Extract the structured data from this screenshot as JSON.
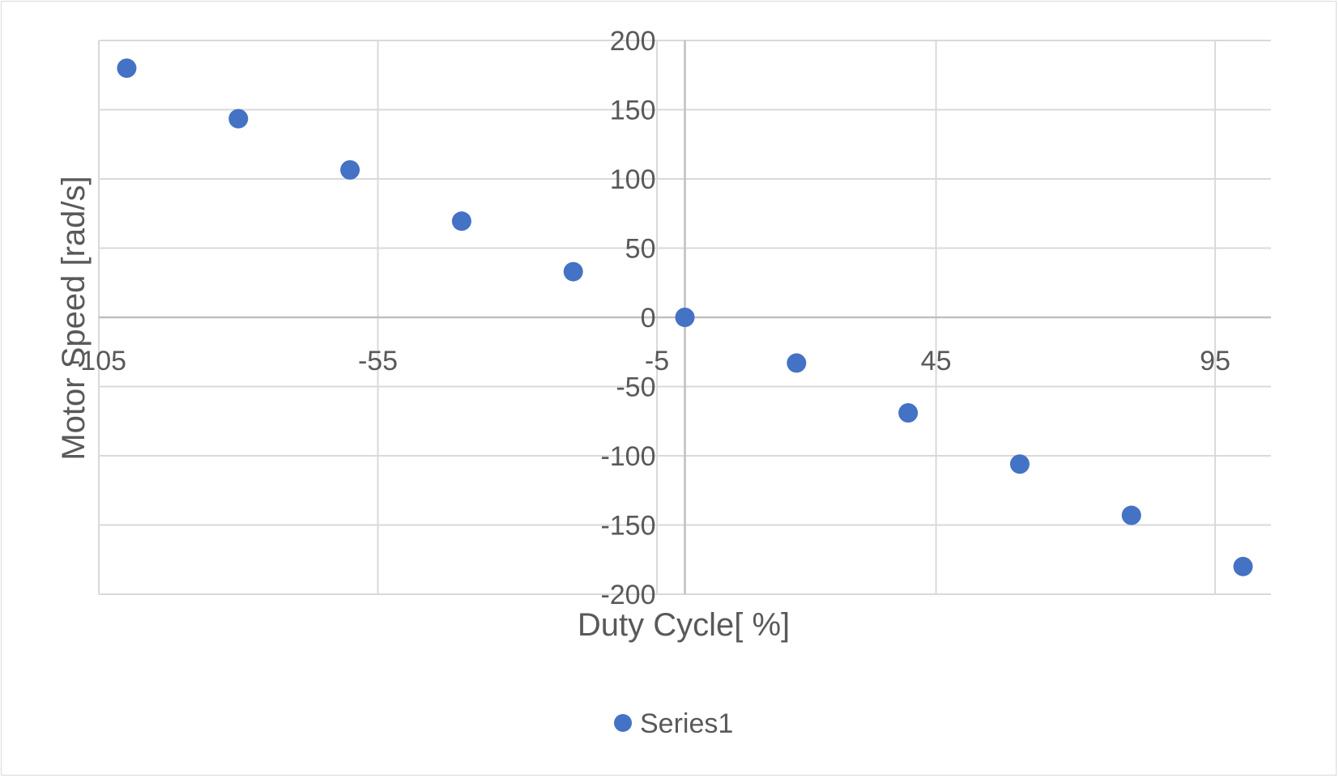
{
  "chart_data": {
    "type": "scatter",
    "title": "",
    "xlabel": "Duty Cycle[ %]",
    "ylabel": "Motor Speed [rad/s]",
    "xlim": [
      -105,
      105
    ],
    "ylim": [
      -200,
      200
    ],
    "x_ticks": [
      -105,
      -55,
      -5,
      45,
      95
    ],
    "y_ticks": [
      200,
      150,
      100,
      50,
      0,
      -50,
      -100,
      -150,
      -200
    ],
    "x_tick_labels": [
      "-105",
      "-55",
      "-5",
      "45",
      "95"
    ],
    "y_tick_labels": [
      "200",
      "150",
      "100",
      "50",
      "0",
      "-50",
      "-100",
      "-150",
      "-200"
    ],
    "grid": true,
    "legend_position": "bottom",
    "series": [
      {
        "name": "Series1",
        "color": "#4472c4",
        "x": [
          -100,
          -80,
          -60,
          -40,
          -20,
          0,
          20,
          40,
          60,
          80,
          100
        ],
        "y": [
          180,
          143.5,
          106.5,
          69.5,
          33,
          0,
          -33,
          -69,
          -106,
          -143,
          -180
        ]
      }
    ]
  }
}
